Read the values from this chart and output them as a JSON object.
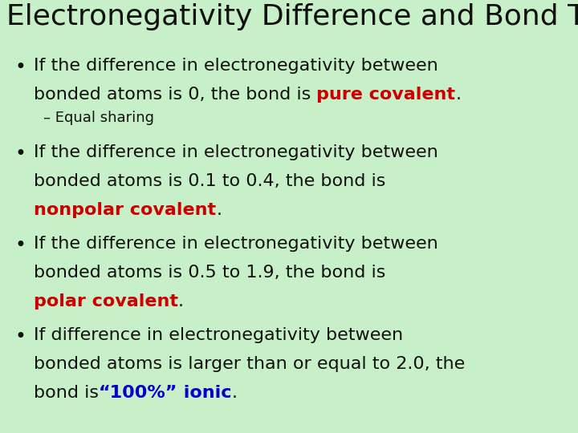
{
  "background_color": "#c8f0c8",
  "title": "Electronegativity Difference and Bond Type",
  "title_color": "#111111",
  "title_fontsize": 26,
  "body_fontsize": 16,
  "sub_fontsize": 13,
  "red_color": "#cc0000",
  "blue_color": "#0000cc",
  "dark_color": "#111111"
}
